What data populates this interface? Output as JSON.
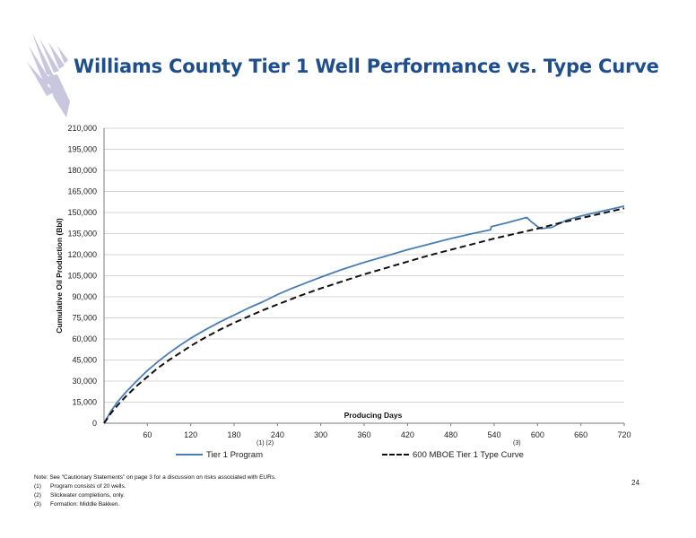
{
  "header": {
    "title": "Williams County Tier 1 Well Performance vs. Type Curve",
    "logo_icon": "hawk-logo-icon"
  },
  "chart_data": {
    "type": "line",
    "title": "",
    "xlabel": "Producing Days",
    "ylabel": "Cumulative Oil Production (Bbl)",
    "xlim": [
      0,
      720
    ],
    "ylim": [
      0,
      210000
    ],
    "xticks": [
      60,
      120,
      180,
      240,
      300,
      360,
      420,
      480,
      540,
      600,
      660,
      720
    ],
    "xtick_labels": [
      "60",
      "120",
      "180",
      "240",
      "300",
      "360",
      "420",
      "480",
      "540",
      "600",
      "660",
      "720"
    ],
    "yticks": [
      0,
      15000,
      30000,
      45000,
      60000,
      75000,
      90000,
      105000,
      120000,
      135000,
      150000,
      165000,
      180000,
      195000,
      210000
    ],
    "ytick_labels": [
      "0",
      "15,000",
      "30,000",
      "45,000",
      "60,000",
      "75,000",
      "90,000",
      "105,000",
      "120,000",
      "135,000",
      "150,000",
      "165,000",
      "180,000",
      "195,000",
      "210,000"
    ],
    "grid": "horizontal",
    "legend_position": "bottom",
    "series": [
      {
        "name": "Tier 1 Program",
        "superscript": "(1) (2)",
        "color": "#4a7eb3",
        "style": "solid",
        "x": [
          0,
          10,
          20,
          30,
          45,
          60,
          75,
          90,
          105,
          120,
          140,
          160,
          180,
          200,
          220,
          240,
          260,
          280,
          300,
          330,
          360,
          390,
          420,
          450,
          480,
          510,
          535,
          536,
          560,
          585,
          590,
          595,
          600,
          605,
          620,
          640,
          660,
          690,
          720
        ],
        "y": [
          0,
          9000,
          16000,
          22000,
          30000,
          37500,
          44000,
          50000,
          55500,
          60500,
          66500,
          72000,
          77000,
          82000,
          86500,
          91500,
          96000,
          100000,
          104000,
          109500,
          114500,
          119000,
          123500,
          127500,
          131500,
          135000,
          137700,
          140000,
          143000,
          146500,
          144000,
          142000,
          140000,
          138500,
          139500,
          144500,
          147500,
          151000,
          154500
        ]
      },
      {
        "name": "600 MBOE Tier 1 Type Curve",
        "superscript": "(3)",
        "color": "#111111",
        "style": "dashed",
        "x": [
          0,
          10,
          20,
          30,
          45,
          60,
          75,
          90,
          105,
          120,
          140,
          160,
          180,
          200,
          220,
          240,
          270,
          300,
          330,
          360,
          390,
          420,
          450,
          480,
          510,
          540,
          570,
          600,
          630,
          660,
          690,
          720
        ],
        "y": [
          0,
          7500,
          13500,
          19000,
          26500,
          33000,
          39500,
          45000,
          50000,
          55000,
          61000,
          66500,
          71500,
          76000,
          80500,
          84500,
          90500,
          96000,
          101000,
          106000,
          110500,
          115000,
          119500,
          123500,
          127500,
          131500,
          135000,
          138500,
          142500,
          146000,
          149500,
          153000
        ]
      }
    ]
  },
  "notes": {
    "main": "Note: See “Cautionary Statements” on page 3 for a discussion on risks associated with EURs.",
    "items": [
      {
        "num": "(1)",
        "text": "Program consists of 20 wells."
      },
      {
        "num": "(2)",
        "text": "Slickwater completions, only."
      },
      {
        "num": "(3)",
        "text": "Formation: Middle Bakken."
      }
    ]
  },
  "page_number": "24"
}
